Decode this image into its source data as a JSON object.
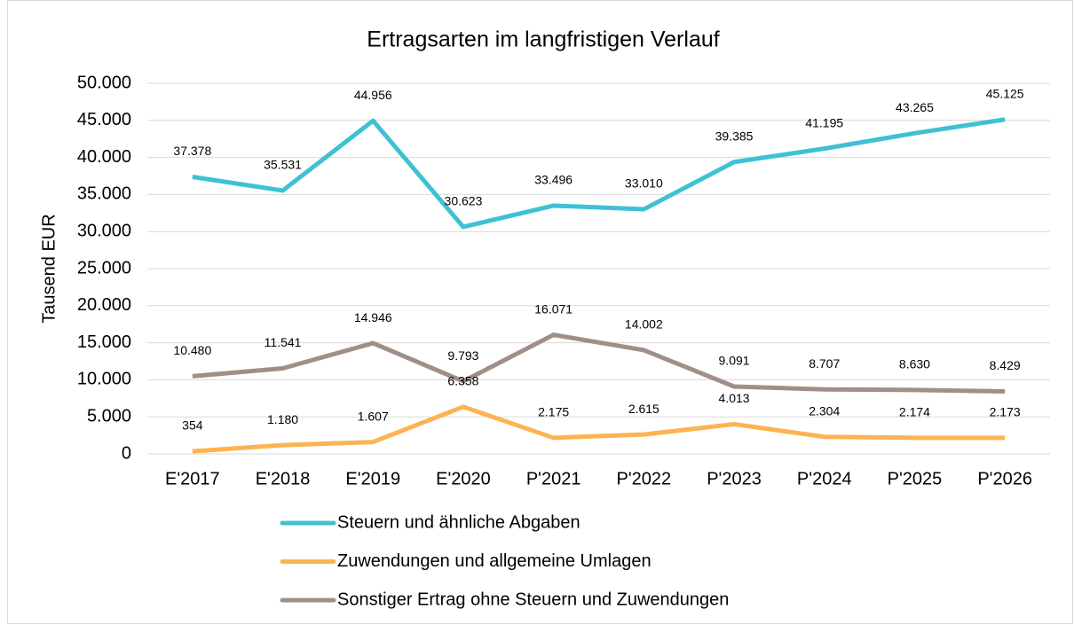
{
  "chart_data": {
    "type": "line",
    "title": "Ertragsarten im langfristigen Verlauf",
    "y_label": "Tausend EUR",
    "categories": [
      "E'2017",
      "E'2018",
      "E'2019",
      "E'2020",
      "P'2021",
      "P'2022",
      "P'2023",
      "P'2024",
      "P'2025",
      "P'2026"
    ],
    "series": [
      {
        "name": "Steuern und ähnliche Abgaben",
        "color": "#3ec1d3",
        "values": [
          37378,
          35531,
          44956,
          30623,
          33496,
          33010,
          39385,
          41195,
          43265,
          45125
        ],
        "value_labels": [
          "37.378",
          "35.531",
          "44.956",
          "30.623",
          "33.496",
          "33.010",
          "39.385",
          "41.195",
          "43.265",
          "45.125"
        ]
      },
      {
        "name": "Zuwendungen und allgemeine Umlagen",
        "color": "#fbb451",
        "values": [
          354,
          1180,
          1607,
          6358,
          2175,
          2615,
          4013,
          2304,
          2174,
          2173
        ],
        "value_labels": [
          "354",
          "1.180",
          "1.607",
          "6.358",
          "2.175",
          "2.615",
          "4.013",
          "2.304",
          "2.174",
          "2.173"
        ]
      },
      {
        "name": "Sonstiger Ertrag ohne Steuern und Zuwendungen",
        "color": "#a18f87",
        "values": [
          10480,
          11541,
          14946,
          9793,
          16071,
          14002,
          9091,
          8707,
          8630,
          8429
        ],
        "value_labels": [
          "10.480",
          "11.541",
          "14.946",
          "9.793",
          "16.071",
          "14.002",
          "9.091",
          "8.707",
          "8.630",
          "8.429"
        ]
      }
    ],
    "ylim": [
      0,
      50000
    ],
    "yticks": [
      0,
      {
        "value": 5000,
        "label": "5.000"
      },
      {
        "value": 10000,
        "label": "10.000"
      },
      {
        "value": 15000,
        "label": "15.000"
      },
      {
        "value": 20000,
        "label": "20.000"
      },
      {
        "value": 25000,
        "label": "25.000"
      },
      {
        "value": 30000,
        "label": "30.000"
      },
      {
        "value": 35000,
        "label": "35.000"
      },
      {
        "value": 40000,
        "label": "40.000"
      },
      {
        "value": 45000,
        "label": "45.000"
      },
      {
        "value": 50000,
        "label": "50.000"
      }
    ],
    "grid": true,
    "legend": "bottom"
  }
}
